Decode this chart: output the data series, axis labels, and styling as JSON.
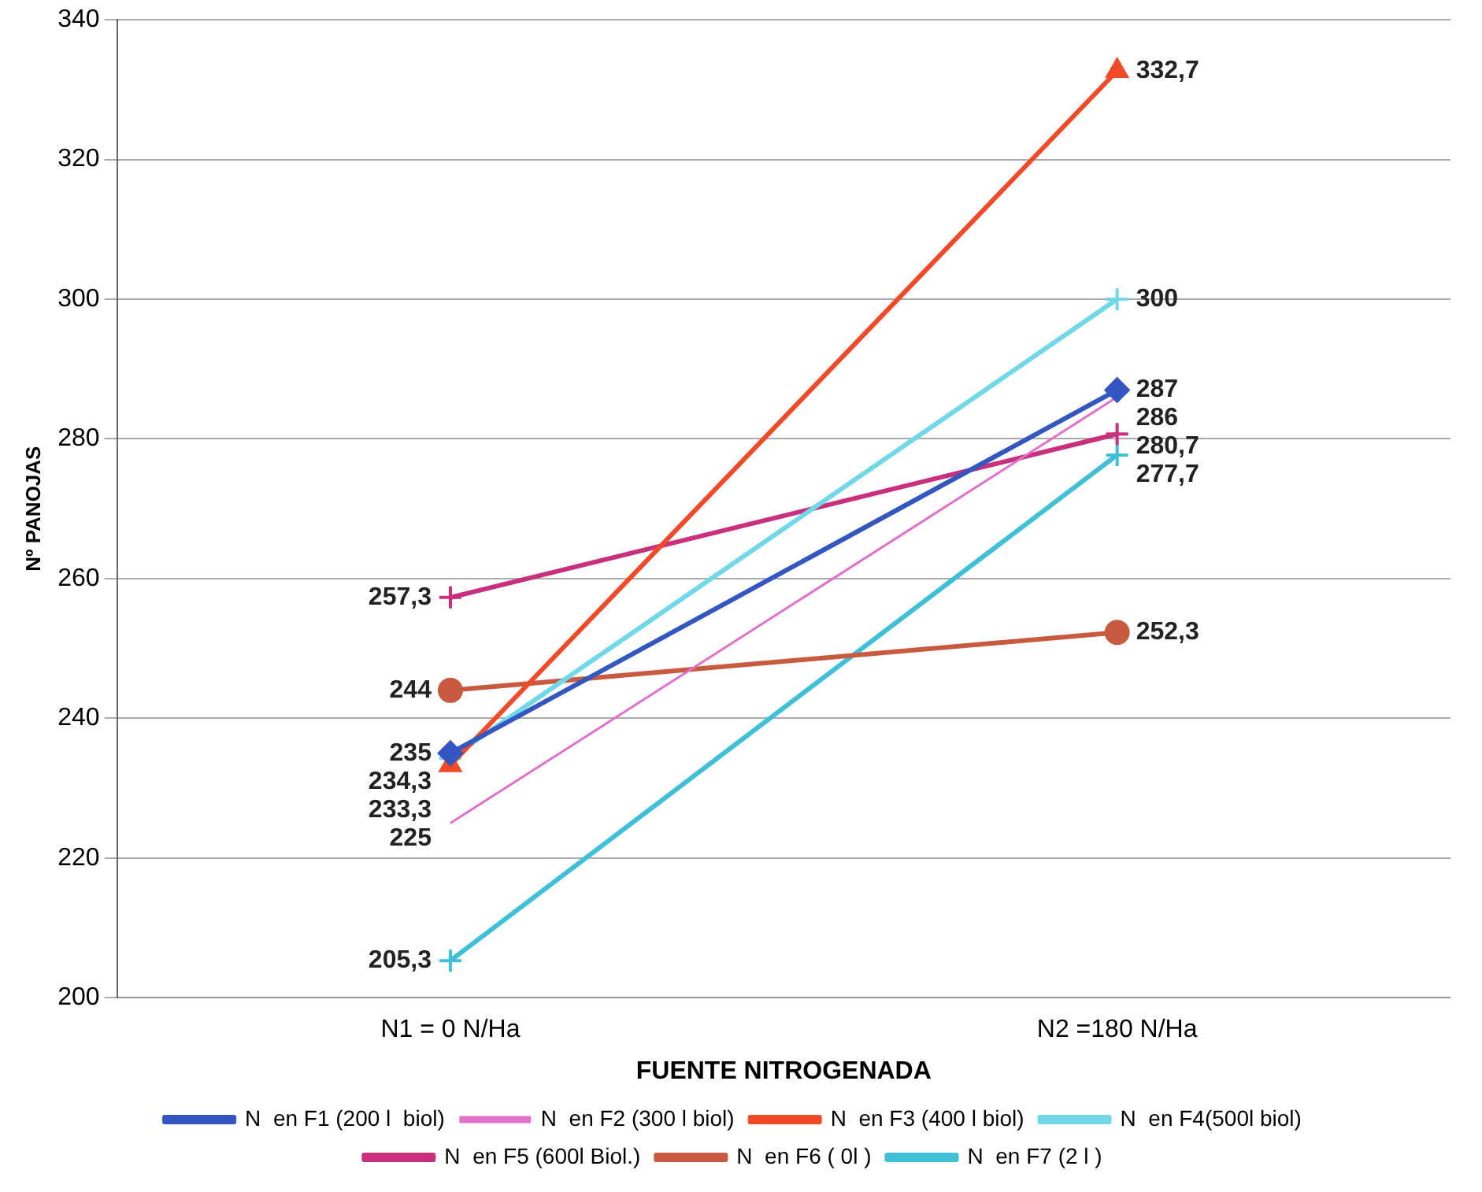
{
  "chart_data": {
    "type": "line",
    "xlabel": "FUENTE NITROGENADA",
    "ylabel": "Nº PANOJAS",
    "categories": [
      "N1 = 0 N/Ha",
      "N2 =180 N/Ha"
    ],
    "ylim": [
      200,
      340
    ],
    "yticks": [
      200,
      220,
      240,
      260,
      280,
      300,
      320,
      340
    ],
    "grid": "y",
    "legend": "bottom",
    "line_style": "solid",
    "series": [
      {
        "name": "N  en F1 (200 l  biol)",
        "color": "#3456c0",
        "marker": "diamond",
        "values": [
          235,
          287
        ],
        "value_labels": [
          "235",
          "287"
        ]
      },
      {
        "name": "N  en F2 (300 l biol)",
        "color": "#e070c8",
        "marker": "none",
        "values": [
          225,
          286
        ],
        "value_labels": [
          "225",
          "286"
        ]
      },
      {
        "name": "N  en F3 (400 l biol)",
        "color": "#f04a28",
        "marker": "triangle",
        "values": [
          233.3,
          332.7
        ],
        "value_labels": [
          "233,3",
          "332,7"
        ]
      },
      {
        "name": "N  en F4(500l biol)",
        "color": "#70d8e8",
        "marker": "cross",
        "values": [
          234.3,
          300
        ],
        "value_labels": [
          "234,3",
          "300"
        ]
      },
      {
        "name": "N  en F5 (600l Biol.)",
        "color": "#c8307e",
        "marker": "cross",
        "values": [
          257.3,
          280.7
        ],
        "value_labels": [
          "257,3",
          "280,7"
        ]
      },
      {
        "name": "N  en F6 ( 0l )",
        "color": "#c85a40",
        "marker": "circle",
        "values": [
          244,
          252.3
        ],
        "value_labels": [
          "244",
          "252,3"
        ]
      },
      {
        "name": "N  en F7 (2 l )",
        "color": "#40c0d8",
        "marker": "cross",
        "values": [
          205.3,
          277.7
        ],
        "value_labels": [
          "205,3",
          "277,7"
        ]
      }
    ]
  }
}
